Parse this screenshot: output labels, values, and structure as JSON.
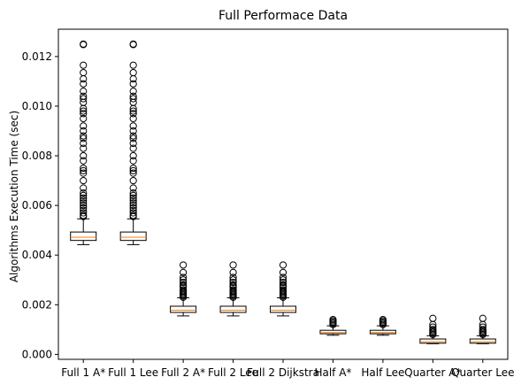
{
  "chart_data": {
    "type": "box",
    "title": "Full Performace Data",
    "xlabel": "",
    "ylabel": "Algorithms Execution Time (sec)",
    "ylim": [
      -0.0002,
      0.0131
    ],
    "yticks": [
      0.0,
      0.002,
      0.004,
      0.006,
      0.008,
      0.01,
      0.012
    ],
    "ytick_labels": [
      "0.000",
      "0.002",
      "0.004",
      "0.006",
      "0.008",
      "0.010",
      "0.012"
    ],
    "grid": false,
    "categories": [
      "Full 1 A*",
      "Full 1 Lee",
      "Full 2 A*",
      "Full 2 Lee",
      "Full 2 Dijkstra",
      "Half A*",
      "Half Lee",
      "Quarter A*",
      "Quarter Lee"
    ],
    "box_color": "#000000",
    "median_color": "#ff7f0e",
    "boxes": [
      {
        "label": "Full 1 A*",
        "whisker_low": 0.00442,
        "q1": 0.00459,
        "median": 0.00472,
        "q3": 0.00493,
        "whisker_high": 0.00546,
        "fliers": [
          0.0125,
          0.01248,
          0.01165,
          0.01135,
          0.0111,
          0.0109,
          0.0106,
          0.0104,
          0.0103,
          0.01015,
          0.0099,
          0.0098,
          0.0097,
          0.0095,
          0.0092,
          0.009,
          0.0088,
          0.0087,
          0.0085,
          0.0083,
          0.008,
          0.0078,
          0.0075,
          0.0074,
          0.0073,
          0.007,
          0.0067,
          0.0065,
          0.0064,
          0.0063,
          0.0062,
          0.0061,
          0.006,
          0.0059,
          0.0058,
          0.0057,
          0.0056,
          0.00555
        ]
      },
      {
        "label": "Full 1 Lee",
        "whisker_low": 0.00442,
        "q1": 0.00459,
        "median": 0.00472,
        "q3": 0.00493,
        "whisker_high": 0.00546,
        "fliers": [
          0.0125,
          0.01248,
          0.01165,
          0.01135,
          0.0111,
          0.0109,
          0.0106,
          0.0104,
          0.0103,
          0.01015,
          0.0099,
          0.0098,
          0.0097,
          0.0095,
          0.0092,
          0.009,
          0.0088,
          0.0087,
          0.0085,
          0.0083,
          0.008,
          0.0078,
          0.0075,
          0.0074,
          0.0073,
          0.007,
          0.0067,
          0.0065,
          0.0064,
          0.0063,
          0.0062,
          0.0061,
          0.006,
          0.0059,
          0.0058,
          0.0057,
          0.0056,
          0.00555
        ]
      },
      {
        "label": "Full 2 A*",
        "whisker_low": 0.00155,
        "q1": 0.00169,
        "median": 0.00178,
        "q3": 0.00194,
        "whisker_high": 0.00228,
        "fliers": [
          0.0036,
          0.0033,
          0.0031,
          0.003,
          0.0029,
          0.0028,
          0.00275,
          0.0027,
          0.0026,
          0.00255,
          0.0025,
          0.00245,
          0.0024,
          0.00235,
          0.0023
        ]
      },
      {
        "label": "Full 2 Lee",
        "whisker_low": 0.00155,
        "q1": 0.00169,
        "median": 0.00178,
        "q3": 0.00194,
        "whisker_high": 0.00228,
        "fliers": [
          0.0036,
          0.0033,
          0.0031,
          0.003,
          0.0029,
          0.0028,
          0.00275,
          0.0027,
          0.0026,
          0.00255,
          0.0025,
          0.00245,
          0.0024,
          0.00235,
          0.0023
        ]
      },
      {
        "label": "Full 2 Dijkstra",
        "whisker_low": 0.00155,
        "q1": 0.00169,
        "median": 0.00178,
        "q3": 0.00194,
        "whisker_high": 0.00228,
        "fliers": [
          0.0036,
          0.0033,
          0.0031,
          0.003,
          0.0029,
          0.0028,
          0.00275,
          0.0027,
          0.0026,
          0.00255,
          0.0025,
          0.00245,
          0.0024,
          0.00235,
          0.0023
        ]
      },
      {
        "label": "Half A*",
        "whisker_low": 0.00077,
        "q1": 0.00083,
        "median": 0.00088,
        "q3": 0.00097,
        "whisker_high": 0.00115,
        "fliers": [
          0.0014,
          0.00135,
          0.0013,
          0.00125,
          0.0012
        ]
      },
      {
        "label": "Half Lee",
        "whisker_low": 0.00077,
        "q1": 0.00083,
        "median": 0.00088,
        "q3": 0.00097,
        "whisker_high": 0.00115,
        "fliers": [
          0.0014,
          0.00135,
          0.0013,
          0.00125,
          0.0012
        ]
      },
      {
        "label": "Quarter A*",
        "whisker_low": 0.00043,
        "q1": 0.00045,
        "median": 0.00051,
        "q3": 0.00062,
        "whisker_high": 0.00075,
        "fliers": [
          0.00145,
          0.0012,
          0.0011,
          0.001,
          0.00095,
          0.0009,
          0.00085,
          0.0008
        ]
      },
      {
        "label": "Quarter Lee",
        "whisker_low": 0.00043,
        "q1": 0.00045,
        "median": 0.00051,
        "q3": 0.00062,
        "whisker_high": 0.00075,
        "fliers": [
          0.00145,
          0.0012,
          0.0011,
          0.001,
          0.00095,
          0.0009,
          0.00085,
          0.0008
        ]
      }
    ]
  }
}
